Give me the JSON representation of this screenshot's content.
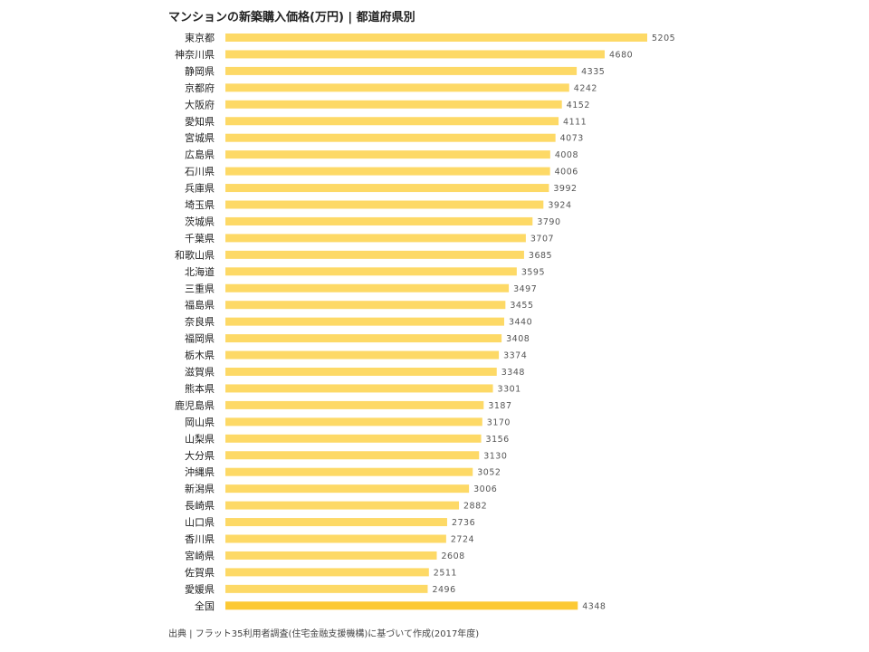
{
  "chart_data": {
    "type": "bar",
    "orientation": "horizontal",
    "title": "マンションの新築購入価格(万円) | 都道府県別",
    "source": "出典 | フラット35利用者調査(住宅金融支援機構)に基づいて作成(2017年度)",
    "categories": [
      "東京都",
      "神奈川県",
      "静岡県",
      "京都府",
      "大阪府",
      "愛知県",
      "宮城県",
      "広島県",
      "石川県",
      "兵庫県",
      "埼玉県",
      "茨城県",
      "千葉県",
      "和歌山県",
      "北海道",
      "三重県",
      "福島県",
      "奈良県",
      "福岡県",
      "栃木県",
      "滋賀県",
      "熊本県",
      "鹿児島県",
      "岡山県",
      "山梨県",
      "大分県",
      "沖縄県",
      "新潟県",
      "長崎県",
      "山口県",
      "香川県",
      "宮崎県",
      "佐賀県",
      "愛媛県",
      "全国"
    ],
    "values": [
      5205,
      4680,
      4335,
      4242,
      4152,
      4111,
      4073,
      4008,
      4006,
      3992,
      3924,
      3790,
      3707,
      3685,
      3595,
      3497,
      3455,
      3440,
      3408,
      3374,
      3348,
      3301,
      3187,
      3170,
      3156,
      3130,
      3052,
      3006,
      2882,
      2736,
      2724,
      2608,
      2511,
      2496,
      4348
    ],
    "xlim": [
      0,
      5205
    ],
    "grid": false,
    "legend": "none",
    "colors": {
      "bar": "#fdd966",
      "highlight": "#fcc934"
    },
    "highlight_category": "全国"
  }
}
